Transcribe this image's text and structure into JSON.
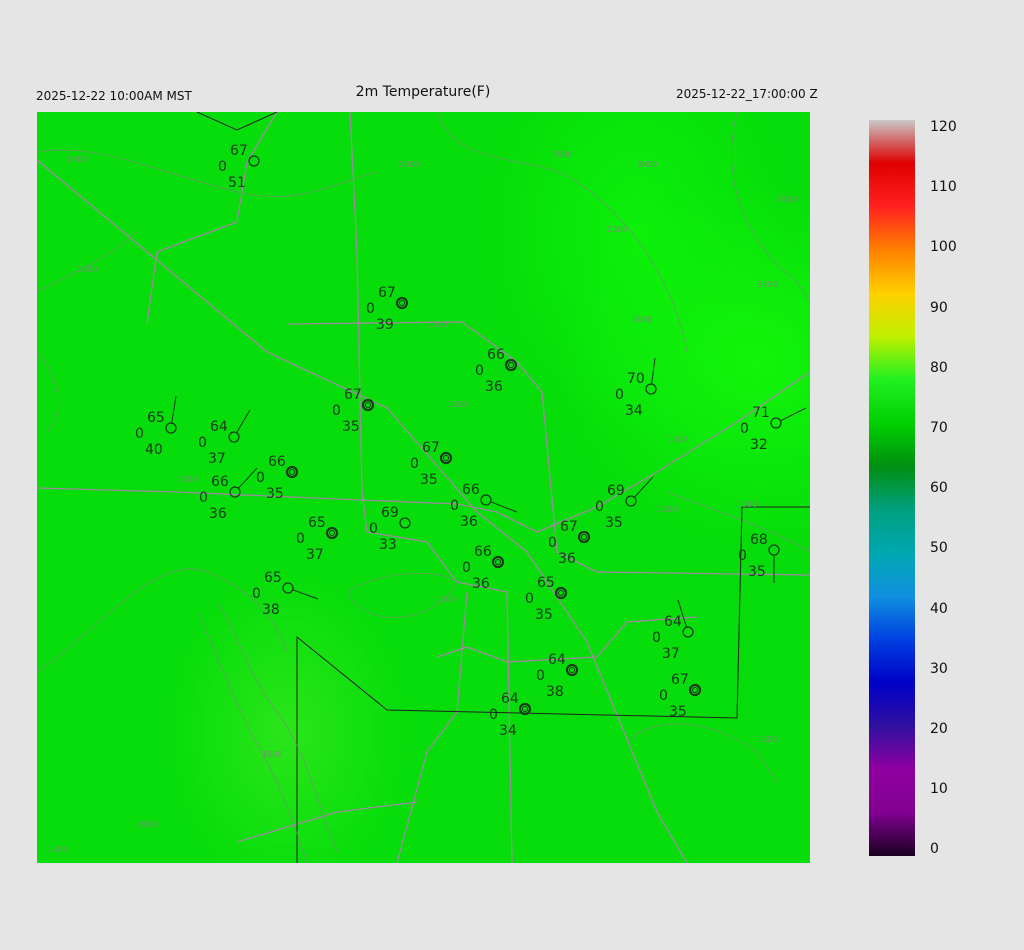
{
  "header": {
    "title": "2m Temperature(F)",
    "local_time": "2025-12-22 10:00AM MST",
    "valid_time": "2025-12-22_17:00:00 Z"
  },
  "colorbar": {
    "labels": [
      "120",
      "110",
      "100",
      "90",
      "80",
      "70",
      "60",
      "50",
      "40",
      "30",
      "20",
      "10",
      "0"
    ],
    "stops": [
      "#1a0020",
      "#800090",
      "#9000a0",
      "#3010a0",
      "#0000c8",
      "#0040e0",
      "#1090e0",
      "#00a8b0",
      "#00a080",
      "#008f10",
      "#00d000",
      "#20f020",
      "#c0f000",
      "#ffd000",
      "#ff8000",
      "#ff2020",
      "#e00000",
      "#c8c8c8"
    ]
  },
  "map": {
    "field_color": "#06dd0a",
    "contour_labels": [
      "2000",
      "2000",
      "3500",
      "3000",
      "3500",
      "2500",
      "2000",
      "3500",
      "1500",
      "1500",
      "1500",
      "1000",
      "1500",
      "1500",
      "2000",
      "1500",
      "1500",
      "1500",
      "1500",
      "1500"
    ],
    "stations": [
      {
        "temp": "67",
        "dew": "51",
        "wind": "0",
        "calm": false
      },
      {
        "temp": "67",
        "dew": "39",
        "wind": "0",
        "calm": true
      },
      {
        "temp": "66",
        "dew": "36",
        "wind": "0",
        "calm": true
      },
      {
        "temp": "67",
        "dew": "35",
        "wind": "0",
        "calm": true
      },
      {
        "temp": "65",
        "dew": "40",
        "wind": "0",
        "calm": false
      },
      {
        "temp": "64",
        "dew": "37",
        "wind": "0",
        "calm": false
      },
      {
        "temp": "66",
        "dew": "35",
        "wind": "0",
        "calm": true
      },
      {
        "temp": "66",
        "dew": "36",
        "wind": "0",
        "calm": false
      },
      {
        "temp": "67",
        "dew": "35",
        "wind": "0",
        "calm": true
      },
      {
        "temp": "66",
        "dew": "36",
        "wind": "0",
        "calm": false
      },
      {
        "temp": "69",
        "dew": "33",
        "wind": "0",
        "calm": false
      },
      {
        "temp": "65",
        "dew": "37",
        "wind": "0",
        "calm": true
      },
      {
        "temp": "65",
        "dew": "38",
        "wind": "0",
        "calm": false
      },
      {
        "temp": "66",
        "dew": "36",
        "wind": "0",
        "calm": true
      },
      {
        "temp": "67",
        "dew": "36",
        "wind": "0",
        "calm": true
      },
      {
        "temp": "69",
        "dew": "35",
        "wind": "0",
        "calm": false
      },
      {
        "temp": "70",
        "dew": "34",
        "wind": "0",
        "calm": false
      },
      {
        "temp": "71",
        "dew": "32",
        "wind": "0",
        "calm": false
      },
      {
        "temp": "68",
        "dew": "35",
        "wind": "0",
        "calm": false
      },
      {
        "temp": "65",
        "dew": "35",
        "wind": "0",
        "calm": true
      },
      {
        "temp": "64",
        "dew": "37",
        "wind": "0",
        "calm": false
      },
      {
        "temp": "64",
        "dew": "38",
        "wind": "0",
        "calm": true
      },
      {
        "temp": "67",
        "dew": "35",
        "wind": "0",
        "calm": true
      },
      {
        "temp": "64",
        "dew": "34",
        "wind": "0",
        "calm": true
      }
    ]
  }
}
